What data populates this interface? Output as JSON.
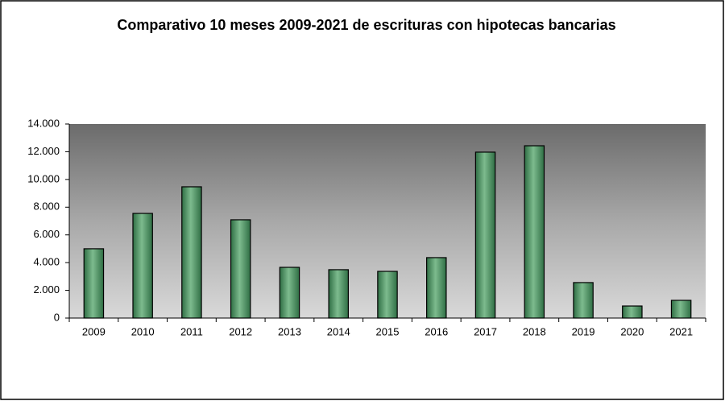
{
  "chart_data": {
    "type": "bar",
    "title": "Comparativo 10 meses 2009-2021 de escrituras con hipotecas bancarias",
    "categories": [
      "2009",
      "2010",
      "2011",
      "2012",
      "2013",
      "2014",
      "2015",
      "2016",
      "2017",
      "2018",
      "2019",
      "2020",
      "2021"
    ],
    "values": [
      5000,
      7550,
      9470,
      7090,
      3660,
      3490,
      3370,
      4360,
      11970,
      12430,
      2560,
      870,
      1280
    ],
    "color": "#3f8a58",
    "ylim": [
      0,
      14000
    ],
    "yticks": [
      0,
      {
        "value": 2000,
        "label": "2.000"
      },
      {
        "value": 4000,
        "label": "4.000"
      },
      {
        "value": 6000,
        "label": "6.000"
      },
      {
        "value": 8000,
        "label": "8.000"
      },
      {
        "value": 10000,
        "label": "10.000"
      },
      {
        "value": 12000,
        "label": "12.000"
      },
      {
        "value": 14000,
        "label": "14.000"
      }
    ],
    "grid": false
  }
}
